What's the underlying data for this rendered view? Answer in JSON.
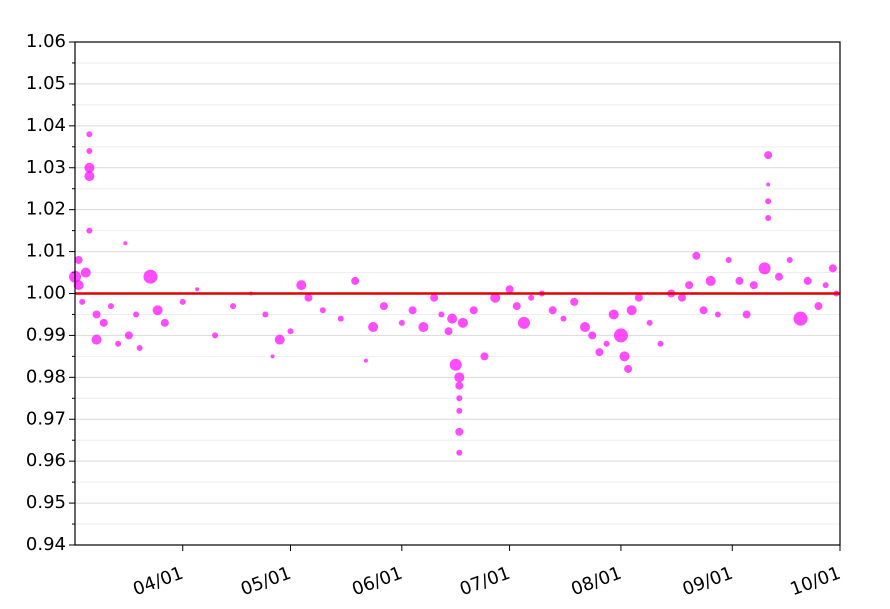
{
  "chart_data": {
    "type": "scatter",
    "xlim": [
      "03/02",
      "10/01"
    ],
    "xticks": [
      "04/01",
      "05/01",
      "06/01",
      "07/01",
      "08/01",
      "09/01",
      "10/01"
    ],
    "ylim": [
      0.94,
      1.06
    ],
    "yticks": [
      {
        "value": 0.94,
        "label": "0.94"
      },
      {
        "value": 0.95,
        "label": "0.95"
      },
      {
        "value": 0.96,
        "label": "0.96"
      },
      {
        "value": 0.97,
        "label": "0.97"
      },
      {
        "value": 0.98,
        "label": "0.98"
      },
      {
        "value": 0.99,
        "label": "0.99"
      },
      {
        "value": 1.0,
        "label": "1.00"
      },
      {
        "value": 1.01,
        "label": "1.01"
      },
      {
        "value": 1.02,
        "label": "1.02"
      },
      {
        "value": 1.03,
        "label": "1.03"
      },
      {
        "value": 1.04,
        "label": "1.04"
      },
      {
        "value": 1.05,
        "label": "1.05"
      },
      {
        "value": 1.06,
        "label": "1.06"
      }
    ],
    "yminorticks": [
      0.945,
      0.955,
      0.965,
      0.975,
      0.985,
      0.995,
      1.005,
      1.015,
      1.025,
      1.035,
      1.045,
      1.055
    ],
    "grid": true,
    "hline": {
      "value": 1.0,
      "color": "#e00000"
    },
    "series": [
      {
        "color": "#ff00ff",
        "x": [
          "03/02",
          "03/03",
          "03/03",
          "03/04",
          "03/05",
          "03/06",
          "03/06",
          "03/06",
          "03/06",
          "03/06",
          "03/08",
          "03/08",
          "03/10",
          "03/12",
          "03/14",
          "03/16",
          "03/17",
          "03/19",
          "03/20",
          "03/23",
          "03/25",
          "03/27",
          "04/01",
          "04/05",
          "04/10",
          "04/15",
          "04/20",
          "04/24",
          "04/26",
          "04/28",
          "05/01",
          "05/04",
          "05/06",
          "05/10",
          "05/15",
          "05/19",
          "05/22",
          "05/24",
          "05/27",
          "06/01",
          "06/04",
          "06/07",
          "06/10",
          "06/12",
          "06/14",
          "06/15",
          "06/16",
          "06/17",
          "06/17",
          "06/17",
          "06/17",
          "06/17",
          "06/17",
          "06/18",
          "06/21",
          "06/24",
          "06/27",
          "07/01",
          "07/03",
          "07/05",
          "07/07",
          "07/10",
          "07/13",
          "07/16",
          "07/19",
          "07/22",
          "07/24",
          "07/26",
          "07/28",
          "07/30",
          "08/01",
          "08/02",
          "08/03",
          "08/04",
          "08/06",
          "08/09",
          "08/12",
          "08/15",
          "08/18",
          "08/20",
          "08/22",
          "08/24",
          "08/26",
          "08/28",
          "08/31",
          "09/03",
          "09/05",
          "09/07",
          "09/10",
          "09/11",
          "09/11",
          "09/11",
          "09/11",
          "09/14",
          "09/17",
          "09/20",
          "09/22",
          "09/25",
          "09/27",
          "09/29",
          "09/30"
        ],
        "values": [
          1.004,
          1.002,
          1.008,
          0.998,
          1.005,
          1.038,
          1.03,
          1.028,
          1.034,
          1.015,
          0.989,
          0.995,
          0.993,
          0.997,
          0.988,
          1.012,
          0.99,
          0.995,
          0.987,
          1.004,
          0.996,
          0.993,
          0.998,
          1.001,
          0.99,
          0.997,
          1.0,
          0.995,
          0.985,
          0.989,
          0.991,
          1.002,
          0.999,
          0.996,
          0.994,
          1.003,
          0.984,
          0.992,
          0.997,
          0.993,
          0.996,
          0.992,
          0.999,
          0.995,
          0.991,
          0.994,
          0.983,
          0.98,
          0.978,
          0.975,
          0.972,
          0.967,
          0.962,
          0.993,
          0.996,
          0.985,
          0.999,
          1.001,
          0.997,
          0.993,
          0.999,
          1.0,
          0.996,
          0.994,
          0.998,
          0.992,
          0.99,
          0.986,
          0.988,
          0.995,
          0.99,
          0.985,
          0.982,
          0.996,
          0.999,
          0.993,
          0.988,
          1.0,
          0.999,
          1.002,
          1.009,
          0.996,
          1.003,
          0.995,
          1.008,
          1.003,
          0.995,
          1.002,
          1.006,
          1.033,
          1.026,
          1.022,
          1.018,
          1.004,
          1.008,
          0.994,
          1.003,
          0.997,
          1.002,
          1.006,
          1.0
        ],
        "sizes": [
          6,
          5,
          4,
          3,
          5,
          3,
          5,
          5,
          3,
          3,
          5,
          4,
          4,
          3,
          3,
          2,
          4,
          3,
          3,
          7,
          5,
          4,
          3,
          2,
          3,
          3,
          2,
          3,
          2,
          5,
          3,
          5,
          4,
          3,
          3,
          4,
          2,
          5,
          4,
          3,
          4,
          5,
          4,
          3,
          4,
          5,
          6,
          5,
          4,
          3,
          3,
          4,
          3,
          5,
          4,
          4,
          5,
          4,
          4,
          6,
          3,
          3,
          4,
          3,
          4,
          5,
          4,
          4,
          3,
          5,
          7,
          5,
          4,
          5,
          4,
          3,
          3,
          4,
          4,
          4,
          4,
          4,
          5,
          3,
          3,
          4,
          4,
          4,
          6,
          4,
          2,
          3,
          3,
          4,
          3,
          7,
          4,
          4,
          3,
          4,
          3
        ]
      }
    ]
  }
}
